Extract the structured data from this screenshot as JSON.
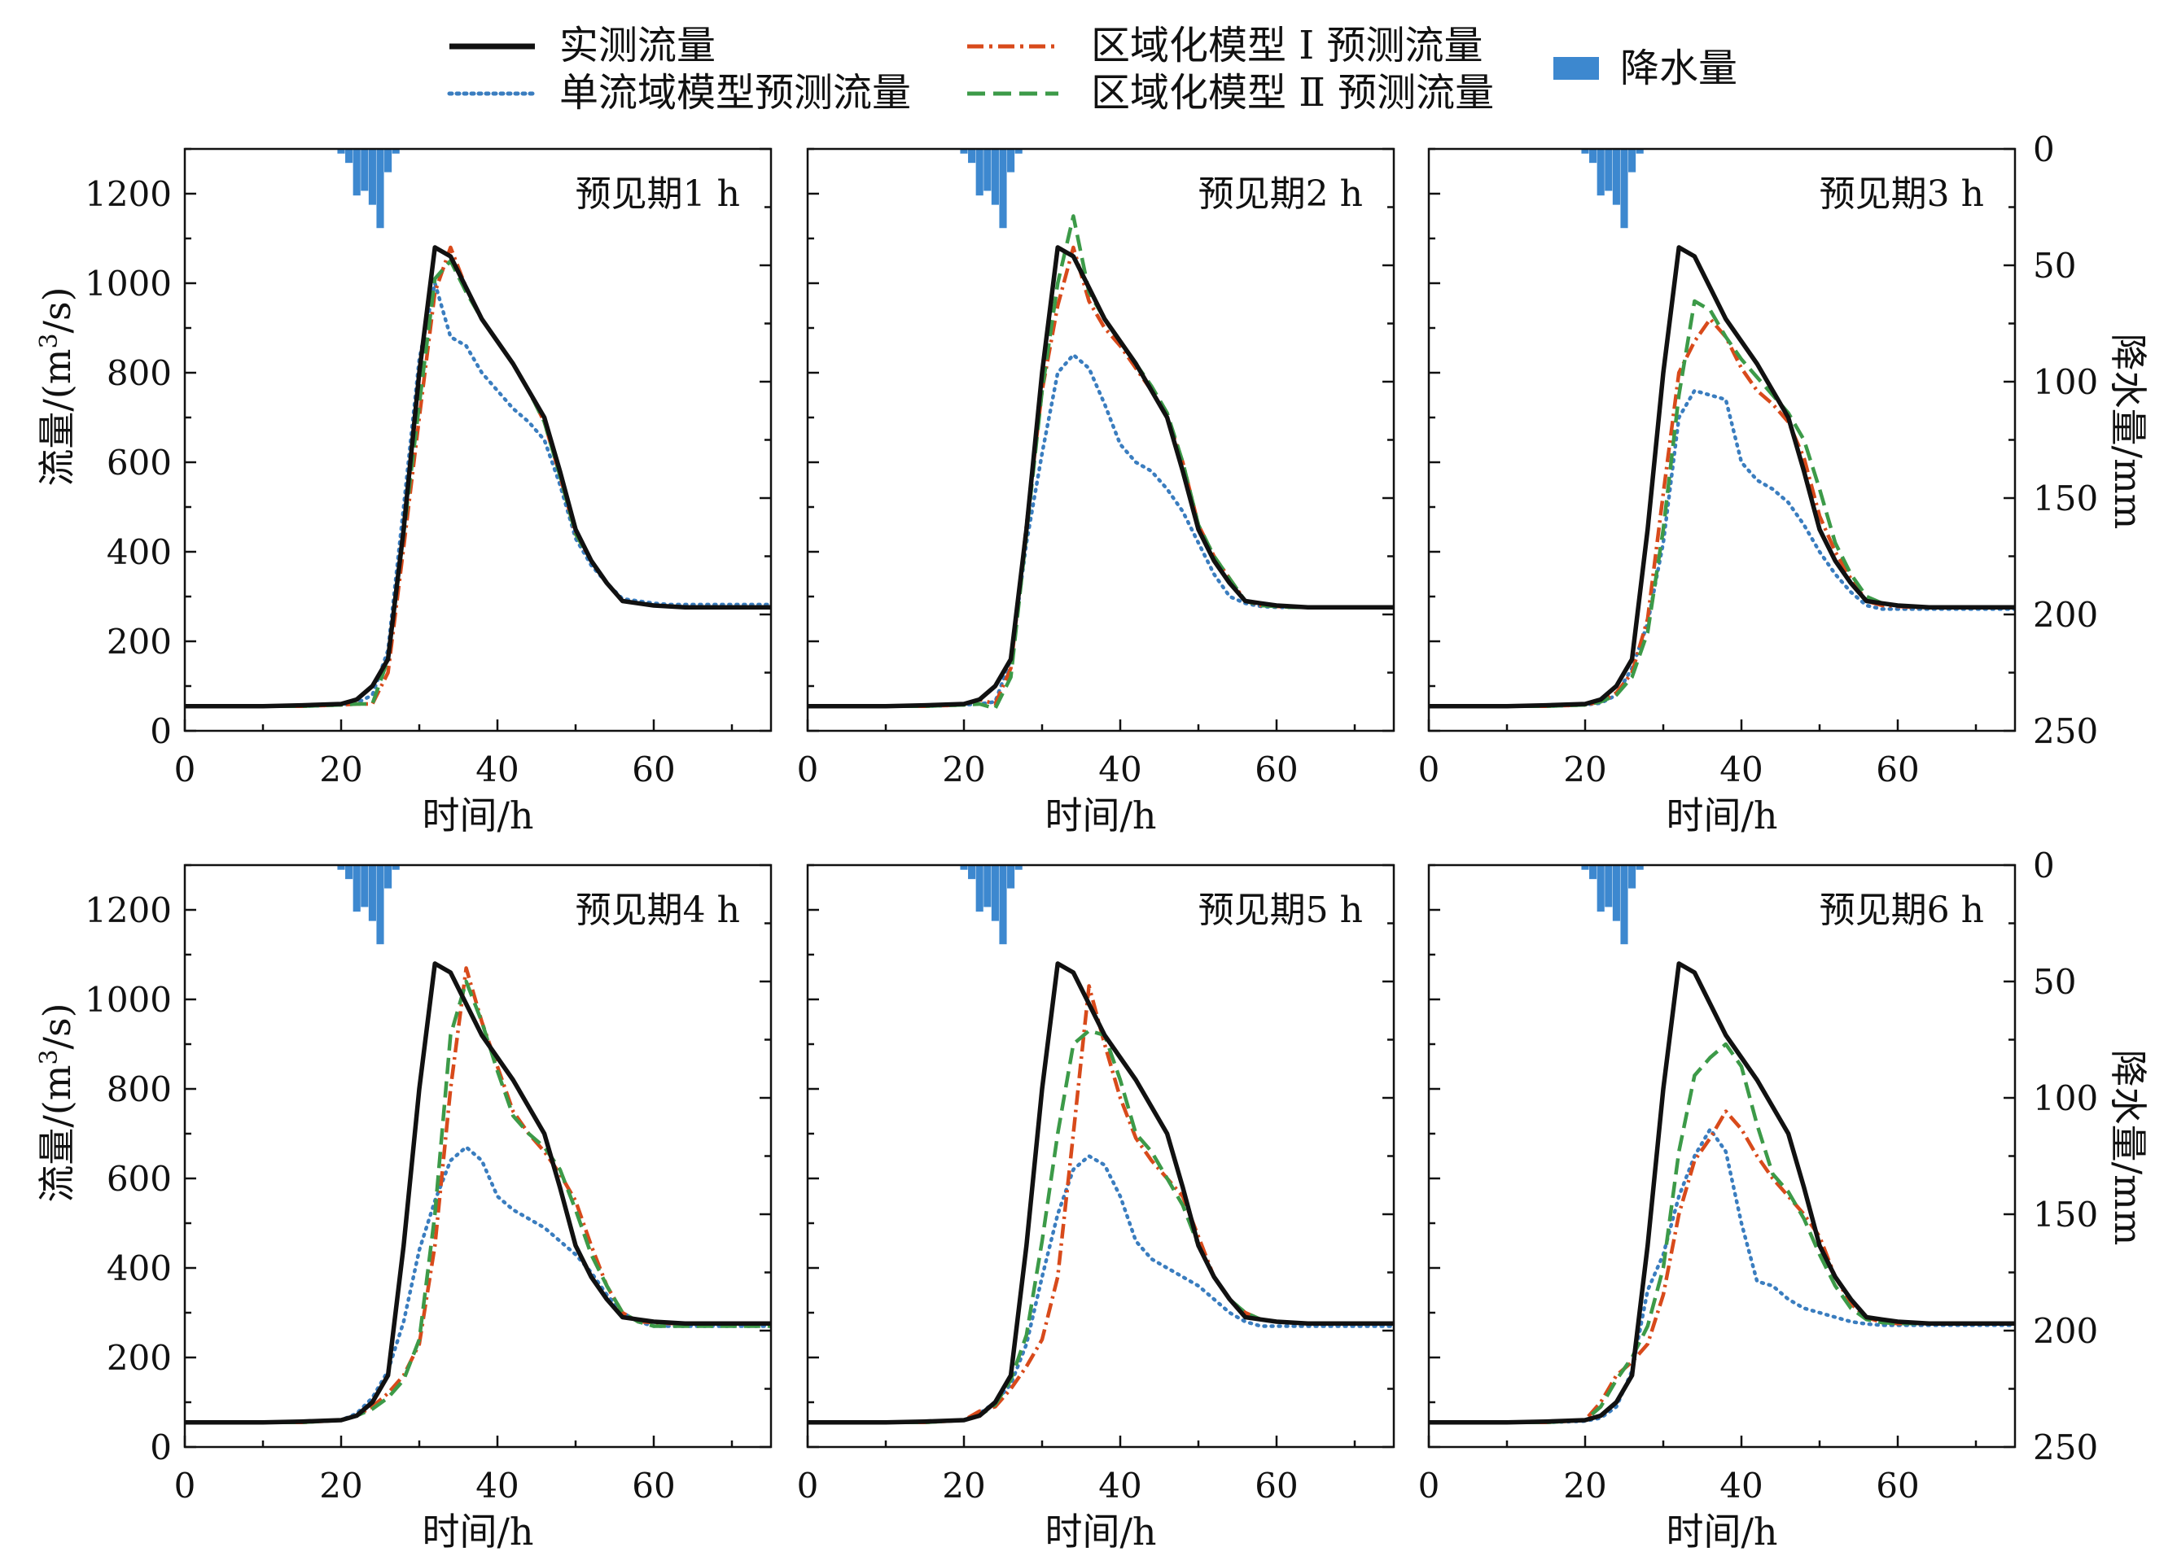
{
  "legend": {
    "observed": "实测流量",
    "single": "单流域模型预测流量",
    "regional1": "区域化模型 Ⅰ 预测流量",
    "regional2": "区域化模型 Ⅱ 预测流量",
    "rain": "降水量"
  },
  "colors": {
    "observed": "#111111",
    "single": "#3a7dbf",
    "regional1": "#d84a1b",
    "regional2": "#3c9a48",
    "rain": "#3d88cf"
  },
  "axes": {
    "xlabel": "时间/h",
    "ylabel_left_main": "流量/(m",
    "ylabel_left_sup": "3",
    "ylabel_left_tail": "/s)",
    "ylabel_right": "降水量/mm",
    "x_ticks": [
      "0",
      "20",
      "40",
      "60"
    ],
    "y_left_ticks": [
      "0",
      "200",
      "400",
      "600",
      "800",
      "1000",
      "1200"
    ],
    "y_right_ticks": [
      "0",
      "50",
      "100",
      "150",
      "200",
      "250"
    ]
  },
  "chart_data": {
    "type": "line",
    "xlim": [
      0,
      75
    ],
    "ylim": [
      0,
      1300
    ],
    "y2lim": [
      0,
      250
    ],
    "y2_inverted": true,
    "x": [
      0,
      5,
      10,
      15,
      20,
      22,
      24,
      26,
      28,
      30,
      32,
      34,
      36,
      38,
      40,
      42,
      44,
      46,
      48,
      50,
      52,
      54,
      56,
      58,
      60,
      62,
      64,
      66,
      68,
      70,
      72,
      75
    ],
    "observed": [
      55,
      55,
      55,
      57,
      60,
      70,
      100,
      160,
      450,
      800,
      1080,
      1060,
      990,
      920,
      870,
      820,
      760,
      700,
      580,
      450,
      380,
      330,
      290,
      285,
      280,
      278,
      276,
      276,
      276,
      276,
      276,
      276
    ],
    "rain": {
      "x": [
        20,
        21,
        22,
        23,
        24,
        25,
        26,
        27
      ],
      "values": [
        2,
        6,
        20,
        18,
        24,
        34,
        10,
        2
      ]
    },
    "panels": [
      {
        "label": "预见期1 h",
        "single": [
          55,
          55,
          55,
          55,
          58,
          62,
          80,
          180,
          500,
          830,
          1000,
          880,
          860,
          800,
          760,
          720,
          690,
          650,
          550,
          430,
          370,
          330,
          295,
          290,
          285,
          282,
          282,
          282,
          282,
          282,
          282,
          282
        ],
        "regional1": [
          55,
          55,
          55,
          55,
          58,
          60,
          60,
          130,
          410,
          700,
          980,
          1080,
          990,
          920,
          870,
          820,
          760,
          690,
          570,
          440,
          380,
          330,
          290,
          285,
          280,
          278,
          276,
          276,
          276,
          276,
          276,
          276
        ],
        "regional2": [
          55,
          55,
          55,
          55,
          58,
          60,
          60,
          160,
          440,
          730,
          1010,
          1050,
          980,
          920,
          870,
          820,
          760,
          690,
          570,
          440,
          380,
          330,
          290,
          285,
          280,
          278,
          276,
          276,
          276,
          276,
          276,
          276
        ]
      },
      {
        "label": "预见期2 h",
        "single": [
          55,
          55,
          55,
          55,
          58,
          60,
          65,
          160,
          420,
          620,
          800,
          840,
          810,
          730,
          640,
          600,
          580,
          540,
          490,
          420,
          350,
          300,
          285,
          278,
          276,
          276,
          276,
          276,
          276,
          276,
          276,
          276
        ],
        "regional1": [
          55,
          55,
          55,
          55,
          58,
          70,
          60,
          140,
          460,
          760,
          950,
          1080,
          960,
          900,
          860,
          810,
          760,
          700,
          600,
          460,
          390,
          340,
          290,
          280,
          278,
          276,
          276,
          276,
          276,
          276,
          276,
          276
        ],
        "regional2": [
          55,
          55,
          55,
          55,
          58,
          60,
          50,
          120,
          440,
          760,
          1000,
          1150,
          980,
          920,
          870,
          820,
          770,
          710,
          600,
          460,
          390,
          340,
          290,
          280,
          278,
          276,
          276,
          276,
          276,
          276,
          276,
          276
        ]
      },
      {
        "label": "预见期3 h",
        "single": [
          55,
          55,
          55,
          55,
          58,
          62,
          80,
          140,
          240,
          420,
          700,
          760,
          750,
          740,
          600,
          560,
          540,
          510,
          460,
          400,
          350,
          310,
          280,
          272,
          272,
          272,
          272,
          272,
          272,
          272,
          272,
          272
        ],
        "regional1": [
          55,
          55,
          55,
          55,
          58,
          65,
          85,
          130,
          250,
          530,
          800,
          870,
          920,
          880,
          810,
          760,
          730,
          690,
          610,
          480,
          400,
          340,
          290,
          280,
          278,
          276,
          276,
          276,
          276,
          276,
          276,
          276
        ],
        "regional2": [
          55,
          55,
          55,
          55,
          58,
          65,
          80,
          120,
          220,
          450,
          750,
          960,
          940,
          880,
          830,
          790,
          750,
          710,
          650,
          540,
          420,
          350,
          300,
          285,
          280,
          278,
          276,
          276,
          276,
          276,
          276,
          276
        ]
      },
      {
        "label": "预见期4 h",
        "single": [
          55,
          55,
          55,
          55,
          60,
          75,
          110,
          170,
          280,
          440,
          550,
          640,
          670,
          640,
          560,
          530,
          510,
          490,
          460,
          430,
          390,
          340,
          300,
          280,
          270,
          270,
          270,
          270,
          270,
          270,
          270,
          270
        ],
        "regional1": [
          55,
          55,
          55,
          55,
          60,
          70,
          90,
          120,
          160,
          230,
          450,
          800,
          1070,
          950,
          850,
          750,
          700,
          660,
          610,
          550,
          450,
          360,
          300,
          280,
          278,
          276,
          276,
          276,
          276,
          276,
          276,
          276
        ],
        "regional2": [
          55,
          55,
          55,
          55,
          60,
          70,
          85,
          110,
          150,
          240,
          520,
          920,
          1040,
          950,
          840,
          740,
          700,
          670,
          620,
          530,
          430,
          360,
          300,
          280,
          270,
          270,
          270,
          270,
          270,
          270,
          270,
          270
        ]
      },
      {
        "label": "预见期5 h",
        "single": [
          55,
          55,
          55,
          55,
          60,
          75,
          100,
          140,
          230,
          380,
          520,
          620,
          650,
          630,
          560,
          460,
          420,
          400,
          380,
          360,
          330,
          300,
          280,
          270,
          270,
          270,
          270,
          270,
          270,
          270,
          270,
          270
        ],
        "regional1": [
          55,
          55,
          55,
          55,
          60,
          80,
          90,
          130,
          180,
          240,
          380,
          700,
          1030,
          900,
          780,
          690,
          640,
          600,
          560,
          470,
          380,
          330,
          300,
          285,
          280,
          278,
          276,
          276,
          276,
          276,
          276,
          276
        ],
        "regional2": [
          55,
          55,
          55,
          55,
          60,
          70,
          95,
          150,
          250,
          460,
          700,
          900,
          930,
          920,
          820,
          700,
          660,
          600,
          540,
          450,
          380,
          330,
          300,
          285,
          280,
          278,
          276,
          276,
          276,
          276,
          276,
          276
        ]
      },
      {
        "label": "预见期6 h",
        "single": [
          55,
          55,
          55,
          55,
          58,
          65,
          90,
          170,
          350,
          430,
          560,
          650,
          710,
          660,
          500,
          370,
          360,
          330,
          310,
          300,
          290,
          280,
          275,
          272,
          272,
          272,
          272,
          272,
          272,
          272,
          272,
          272
        ],
        "regional1": [
          55,
          55,
          55,
          55,
          60,
          100,
          160,
          190,
          230,
          340,
          520,
          640,
          690,
          750,
          710,
          650,
          600,
          560,
          520,
          470,
          380,
          320,
          290,
          278,
          276,
          276,
          276,
          276,
          276,
          276,
          276,
          276
        ],
        "regional2": [
          55,
          55,
          55,
          55,
          60,
          90,
          150,
          200,
          270,
          400,
          660,
          830,
          870,
          900,
          850,
          720,
          610,
          570,
          510,
          430,
          360,
          310,
          285,
          278,
          276,
          276,
          276,
          276,
          276,
          276,
          276,
          276
        ]
      }
    ]
  }
}
